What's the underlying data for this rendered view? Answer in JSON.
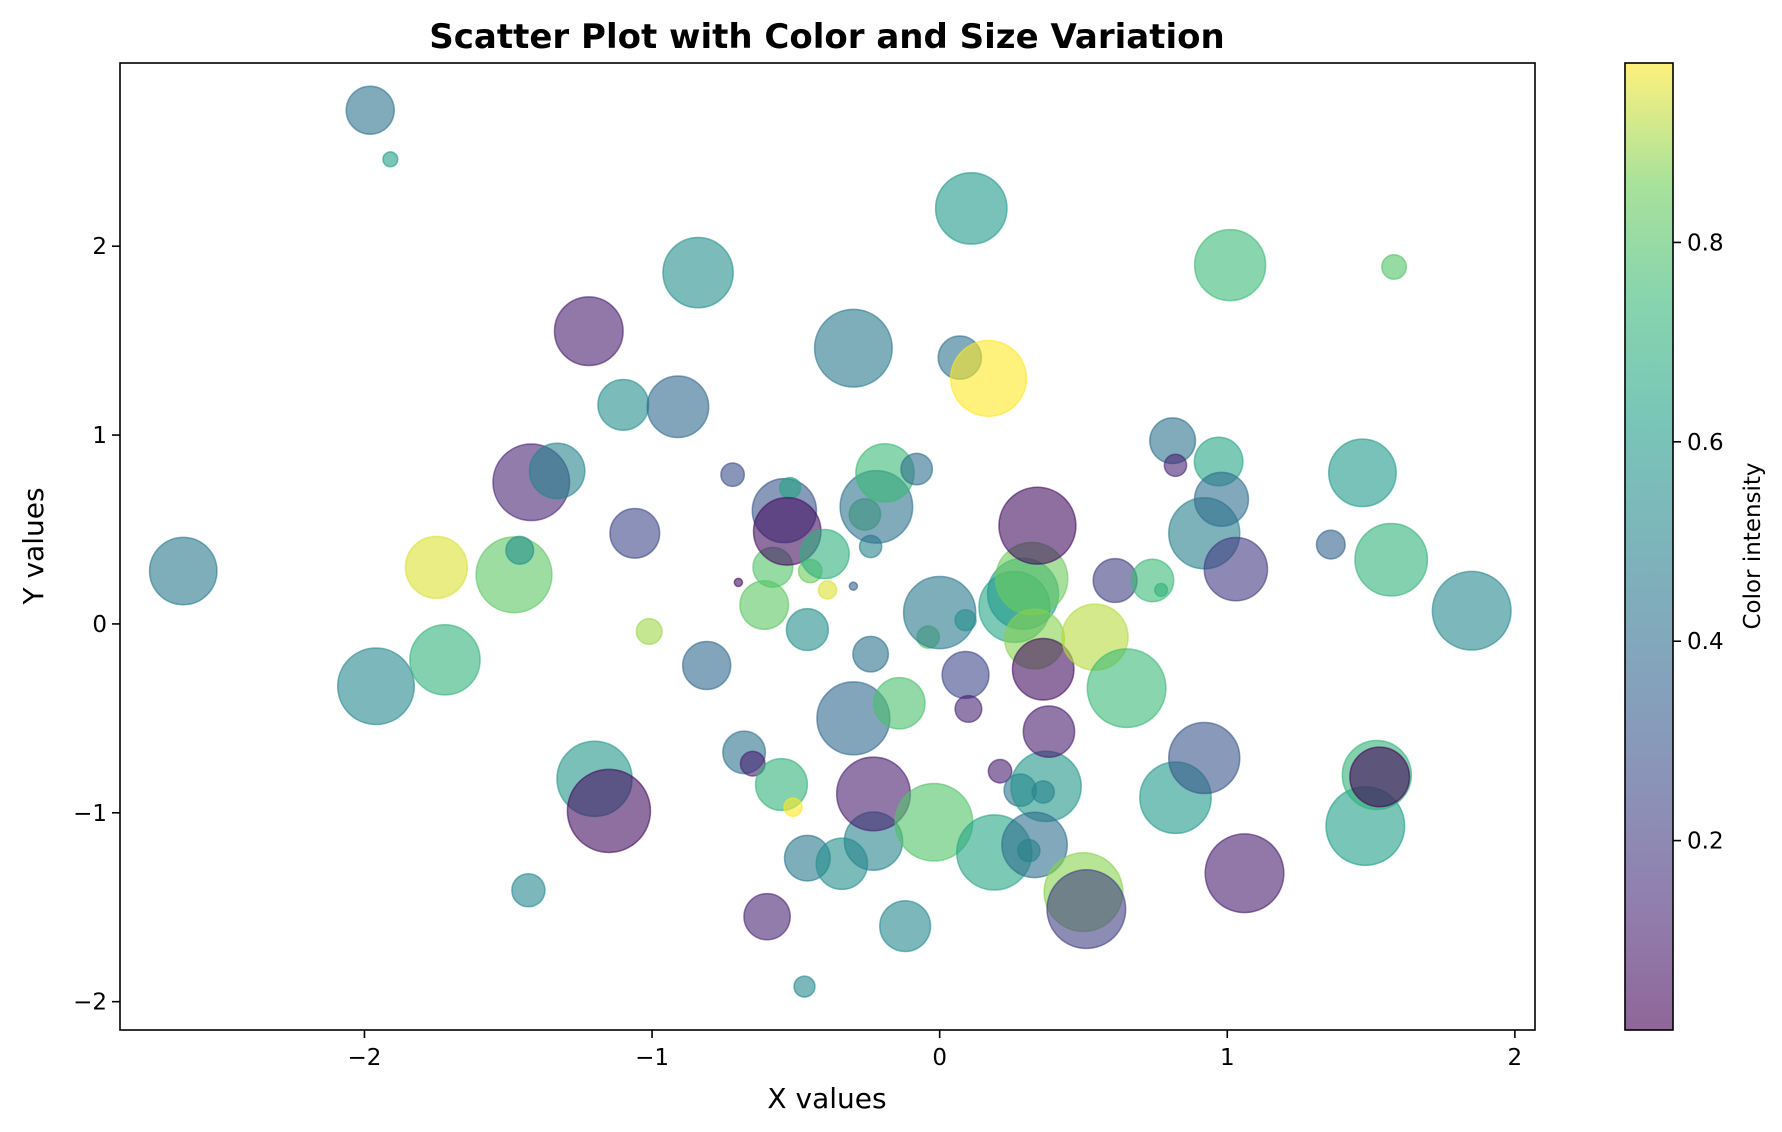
{
  "chart_data": {
    "type": "scatter",
    "title": "Scatter Plot with Color and Size Variation",
    "xlabel": "X values",
    "ylabel": "Y values",
    "xlim": [
      -2.85,
      2.07
    ],
    "ylim": [
      -2.15,
      2.97
    ],
    "xticks": [
      -2,
      -1,
      0,
      1,
      2
    ],
    "yticks": [
      -2,
      -1,
      0,
      1,
      2
    ],
    "grid": false,
    "colormap": "viridis",
    "alpha": 0.6,
    "colorbar": {
      "label": "Color intensity",
      "range": [
        0.01,
        0.98
      ],
      "ticks": [
        0.2,
        0.4,
        0.6,
        0.8
      ]
    },
    "points": [
      {
        "x": -1.98,
        "y": 2.72,
        "size": 420,
        "c": 0.42
      },
      {
        "x": -1.91,
        "y": 2.46,
        "size": 40,
        "c": 0.62
      },
      {
        "x": -2.63,
        "y": 0.28,
        "size": 830,
        "c": 0.45
      },
      {
        "x": -1.96,
        "y": -0.33,
        "size": 1070,
        "c": 0.52
      },
      {
        "x": -1.75,
        "y": 0.3,
        "size": 700,
        "c": 0.95
      },
      {
        "x": -1.72,
        "y": -0.19,
        "size": 900,
        "c": 0.72
      },
      {
        "x": -1.48,
        "y": 0.26,
        "size": 1050,
        "c": 0.82
      },
      {
        "x": -1.46,
        "y": 0.39,
        "size": 140,
        "c": 0.55
      },
      {
        "x": -1.42,
        "y": 0.75,
        "size": 1070,
        "c": 0.12
      },
      {
        "x": -1.33,
        "y": 0.81,
        "size": 560,
        "c": 0.5
      },
      {
        "x": -1.43,
        "y": -1.41,
        "size": 200,
        "c": 0.52
      },
      {
        "x": -1.22,
        "y": 1.55,
        "size": 860,
        "c": 0.1
      },
      {
        "x": -1.2,
        "y": -0.82,
        "size": 1030,
        "c": 0.58
      },
      {
        "x": -1.15,
        "y": -0.99,
        "size": 1260,
        "c": 0.05
      },
      {
        "x": -1.1,
        "y": 1.16,
        "size": 470,
        "c": 0.55
      },
      {
        "x": -1.06,
        "y": 0.48,
        "size": 450,
        "c": 0.25
      },
      {
        "x": -1.01,
        "y": -0.04,
        "size": 120,
        "c": 0.9
      },
      {
        "x": -0.91,
        "y": 1.15,
        "size": 690,
        "c": 0.38
      },
      {
        "x": -0.84,
        "y": 1.86,
        "size": 900,
        "c": 0.55
      },
      {
        "x": -0.81,
        "y": -0.22,
        "size": 420,
        "c": 0.38
      },
      {
        "x": -0.72,
        "y": 0.79,
        "size": 100,
        "c": 0.28
      },
      {
        "x": -0.7,
        "y": 0.22,
        "size": 12,
        "c": 0.05
      },
      {
        "x": -0.68,
        "y": -0.68,
        "size": 330,
        "c": 0.42
      },
      {
        "x": -0.65,
        "y": -0.74,
        "size": 110,
        "c": 0.1
      },
      {
        "x": -0.61,
        "y": 0.1,
        "size": 430,
        "c": 0.82
      },
      {
        "x": -0.6,
        "y": -1.55,
        "size": 390,
        "c": 0.12
      },
      {
        "x": -0.58,
        "y": 0.3,
        "size": 290,
        "c": 0.8
      },
      {
        "x": -0.55,
        "y": -0.85,
        "size": 490,
        "c": 0.72
      },
      {
        "x": -0.54,
        "y": 0.6,
        "size": 750,
        "c": 0.3
      },
      {
        "x": -0.52,
        "y": 0.72,
        "size": 80,
        "c": 0.65
      },
      {
        "x": -0.53,
        "y": 0.49,
        "size": 830,
        "c": 0.05
      },
      {
        "x": -0.51,
        "y": -0.97,
        "size": 60,
        "c": 0.98
      },
      {
        "x": -0.47,
        "y": -1.92,
        "size": 80,
        "c": 0.52
      },
      {
        "x": -0.46,
        "y": -0.03,
        "size": 320,
        "c": 0.55
      },
      {
        "x": -0.46,
        "y": -1.24,
        "size": 380,
        "c": 0.45
      },
      {
        "x": -0.45,
        "y": 0.28,
        "size": 100,
        "c": 0.85
      },
      {
        "x": -0.4,
        "y": 0.37,
        "size": 440,
        "c": 0.7
      },
      {
        "x": -0.39,
        "y": 0.18,
        "size": 60,
        "c": 0.95
      },
      {
        "x": -0.34,
        "y": -1.27,
        "size": 480,
        "c": 0.55
      },
      {
        "x": -0.3,
        "y": 0.2,
        "size": 12,
        "c": 0.35
      },
      {
        "x": -0.3,
        "y": -0.5,
        "size": 970,
        "c": 0.38
      },
      {
        "x": -0.3,
        "y": 1.46,
        "size": 1100,
        "c": 0.45
      },
      {
        "x": -0.26,
        "y": 0.58,
        "size": 180,
        "c": 0.8
      },
      {
        "x": -0.24,
        "y": 0.41,
        "size": 90,
        "c": 0.5
      },
      {
        "x": -0.24,
        "y": -0.16,
        "size": 230,
        "c": 0.42
      },
      {
        "x": -0.23,
        "y": -1.15,
        "size": 620,
        "c": 0.5
      },
      {
        "x": -0.23,
        "y": -0.9,
        "size": 990,
        "c": 0.1
      },
      {
        "x": -0.22,
        "y": 0.62,
        "size": 960,
        "c": 0.42
      },
      {
        "x": -0.19,
        "y": 0.8,
        "size": 620,
        "c": 0.75
      },
      {
        "x": -0.14,
        "y": -0.42,
        "size": 480,
        "c": 0.78
      },
      {
        "x": -0.12,
        "y": -1.6,
        "size": 470,
        "c": 0.52
      },
      {
        "x": -0.08,
        "y": 0.82,
        "size": 180,
        "c": 0.4
      },
      {
        "x": -0.04,
        "y": -0.07,
        "size": 90,
        "c": 0.82
      },
      {
        "x": -0.02,
        "y": -1.05,
        "size": 1100,
        "c": 0.8
      },
      {
        "x": 0.0,
        "y": 0.06,
        "size": 950,
        "c": 0.45
      },
      {
        "x": 0.07,
        "y": 1.41,
        "size": 340,
        "c": 0.42
      },
      {
        "x": 0.09,
        "y": 0.02,
        "size": 80,
        "c": 0.55
      },
      {
        "x": 0.09,
        "y": -0.27,
        "size": 400,
        "c": 0.25
      },
      {
        "x": 0.1,
        "y": -0.45,
        "size": 130,
        "c": 0.12
      },
      {
        "x": 0.11,
        "y": 2.2,
        "size": 930,
        "c": 0.6
      },
      {
        "x": 0.17,
        "y": 1.3,
        "size": 1050,
        "c": 0.98
      },
      {
        "x": 0.19,
        "y": -1.21,
        "size": 1030,
        "c": 0.65
      },
      {
        "x": 0.21,
        "y": -0.78,
        "size": 100,
        "c": 0.1
      },
      {
        "x": 0.26,
        "y": 0.09,
        "size": 920,
        "c": 0.65
      },
      {
        "x": 0.29,
        "y": 0.16,
        "size": 920,
        "c": 0.6
      },
      {
        "x": 0.28,
        "y": -0.88,
        "size": 190,
        "c": 0.42
      },
      {
        "x": 0.31,
        "y": -1.2,
        "size": 90,
        "c": 0.6
      },
      {
        "x": 0.32,
        "y": 0.24,
        "size": 950,
        "c": 0.85
      },
      {
        "x": 0.33,
        "y": -0.08,
        "size": 650,
        "c": 0.88
      },
      {
        "x": 0.34,
        "y": 0.52,
        "size": 1080,
        "c": 0.05
      },
      {
        "x": 0.36,
        "y": -0.89,
        "size": 90,
        "c": 0.38
      },
      {
        "x": 0.37,
        "y": -0.86,
        "size": 900,
        "c": 0.58
      },
      {
        "x": 0.33,
        "y": -1.17,
        "size": 780,
        "c": 0.4
      },
      {
        "x": 0.36,
        "y": -0.24,
        "size": 690,
        "c": 0.05
      },
      {
        "x": 0.38,
        "y": -0.57,
        "size": 480,
        "c": 0.1
      },
      {
        "x": 0.5,
        "y": -1.42,
        "size": 1130,
        "c": 0.88
      },
      {
        "x": 0.51,
        "y": -1.51,
        "size": 1130,
        "c": 0.22
      },
      {
        "x": 0.54,
        "y": -0.07,
        "size": 800,
        "c": 0.92
      },
      {
        "x": 0.61,
        "y": 0.23,
        "size": 350,
        "c": 0.22
      },
      {
        "x": 0.65,
        "y": -0.34,
        "size": 1130,
        "c": 0.75
      },
      {
        "x": 0.74,
        "y": 0.23,
        "size": 330,
        "c": 0.75
      },
      {
        "x": 0.77,
        "y": 0.18,
        "size": 30,
        "c": 0.72
      },
      {
        "x": 0.81,
        "y": 0.97,
        "size": 380,
        "c": 0.42
      },
      {
        "x": 0.82,
        "y": 0.84,
        "size": 90,
        "c": 0.12
      },
      {
        "x": 0.82,
        "y": -0.92,
        "size": 930,
        "c": 0.6
      },
      {
        "x": 0.92,
        "y": 0.48,
        "size": 920,
        "c": 0.48
      },
      {
        "x": 0.92,
        "y": -0.71,
        "size": 920,
        "c": 0.3
      },
      {
        "x": 0.97,
        "y": 0.86,
        "size": 430,
        "c": 0.65
      },
      {
        "x": 0.98,
        "y": 0.66,
        "size": 530,
        "c": 0.4
      },
      {
        "x": 1.01,
        "y": 1.9,
        "size": 920,
        "c": 0.75
      },
      {
        "x": 1.03,
        "y": 0.29,
        "size": 730,
        "c": 0.2
      },
      {
        "x": 1.06,
        "y": -1.32,
        "size": 1130,
        "c": 0.1
      },
      {
        "x": 1.36,
        "y": 0.42,
        "size": 150,
        "c": 0.35
      },
      {
        "x": 1.47,
        "y": 0.8,
        "size": 830,
        "c": 0.6
      },
      {
        "x": 1.48,
        "y": -1.07,
        "size": 1130,
        "c": 0.62
      },
      {
        "x": 1.52,
        "y": -0.8,
        "size": 870,
        "c": 0.72
      },
      {
        "x": 1.53,
        "y": -0.81,
        "size": 650,
        "c": 0.02
      },
      {
        "x": 1.57,
        "y": 0.34,
        "size": 960,
        "c": 0.72
      },
      {
        "x": 1.58,
        "y": 1.89,
        "size": 110,
        "c": 0.8
      },
      {
        "x": 1.85,
        "y": 0.07,
        "size": 1130,
        "c": 0.52
      }
    ]
  }
}
